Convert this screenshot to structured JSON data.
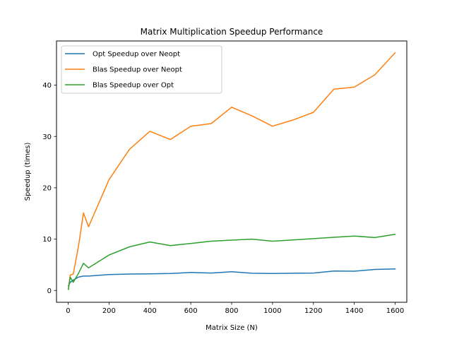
{
  "chart_data": {
    "type": "line",
    "title": "Matrix Multiplication Speedup Performance",
    "xlabel": "Matrix Size (N)",
    "ylabel": "Speedup (times)",
    "xlim": [
      -57,
      1657
    ],
    "ylim": [
      -2.3,
      48.6
    ],
    "xticks": [
      0,
      200,
      400,
      600,
      800,
      1000,
      1200,
      1400,
      1600
    ],
    "yticks": [
      0,
      10,
      20,
      30,
      40
    ],
    "grid": false,
    "legend_position": "upper left",
    "series": [
      {
        "name": "Opt Speedup over Neopt",
        "color": "#1f77b4",
        "x": [
          1,
          10,
          25,
          50,
          75,
          100,
          200,
          300,
          400,
          500,
          600,
          700,
          800,
          900,
          1000,
          1100,
          1200,
          1300,
          1400,
          1500,
          1600
        ],
        "y": [
          0.9,
          1.6,
          2.0,
          2.6,
          2.8,
          2.8,
          3.1,
          3.2,
          3.25,
          3.3,
          3.5,
          3.4,
          3.65,
          3.35,
          3.3,
          3.35,
          3.4,
          3.8,
          3.75,
          4.1,
          4.2
        ]
      },
      {
        "name": "Blas Speedup over Neopt",
        "color": "#ff7f0e",
        "x": [
          1,
          10,
          25,
          50,
          75,
          100,
          200,
          300,
          400,
          500,
          600,
          700,
          800,
          900,
          1000,
          1100,
          1200,
          1300,
          1400,
          1500,
          1600
        ],
        "y": [
          0.2,
          3.0,
          3.2,
          8.5,
          15.1,
          12.4,
          21.6,
          27.5,
          31.0,
          29.4,
          32.0,
          32.5,
          35.7,
          34.0,
          32.0,
          33.2,
          34.7,
          39.2,
          39.6,
          42.0,
          46.3
        ]
      },
      {
        "name": "Blas Speedup over Opt",
        "color": "#2ca02c",
        "x": [
          1,
          10,
          25,
          50,
          75,
          100,
          200,
          300,
          400,
          500,
          600,
          700,
          800,
          900,
          1000,
          1100,
          1200,
          1300,
          1400,
          1500,
          1600
        ],
        "y": [
          0.2,
          2.6,
          1.6,
          3.3,
          5.3,
          4.4,
          6.9,
          8.5,
          9.45,
          8.75,
          9.15,
          9.6,
          9.8,
          10.0,
          9.6,
          9.85,
          10.1,
          10.35,
          10.6,
          10.3,
          10.95
        ]
      }
    ]
  }
}
